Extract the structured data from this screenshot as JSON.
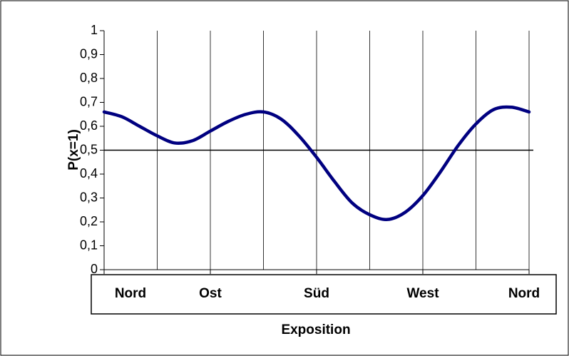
{
  "chart_data": {
    "type": "line",
    "x_label": "Exposition",
    "y_label": "P(x=1)",
    "x": [
      0,
      15,
      30,
      45,
      60,
      75,
      90,
      105,
      120,
      135,
      150,
      165,
      180,
      195,
      210,
      225,
      240,
      255,
      270,
      285,
      300,
      315,
      330,
      345,
      360
    ],
    "series": [
      {
        "color": "#000080",
        "values": [
          0.66,
          0.64,
          0.6,
          0.56,
          0.53,
          0.54,
          0.58,
          0.62,
          0.65,
          0.66,
          0.63,
          0.56,
          0.47,
          0.37,
          0.28,
          0.23,
          0.21,
          0.24,
          0.31,
          0.41,
          0.52,
          0.61,
          0.67,
          0.68,
          0.66
        ]
      }
    ],
    "xlim": [
      0,
      360
    ],
    "xticks": [
      {
        "value": 0,
        "label": "Nord"
      },
      {
        "value": 90,
        "label": "Ost"
      },
      {
        "value": 180,
        "label": "Süd"
      },
      {
        "value": 270,
        "label": "West"
      },
      {
        "value": 360,
        "label": "Nord"
      }
    ],
    "xgrid": [
      0,
      45,
      90,
      135,
      180,
      225,
      270,
      315,
      360
    ],
    "ylim": [
      0,
      1
    ],
    "yticks": [
      0,
      {
        "value": 0.1,
        "label": "0,1"
      },
      {
        "value": 0.2,
        "label": "0,2"
      },
      {
        "value": 0.3,
        "label": "0,3"
      },
      {
        "value": 0.4,
        "label": "0,4"
      },
      {
        "value": 0.5,
        "label": "0,5"
      },
      {
        "value": 0.6,
        "label": "0,6"
      },
      {
        "value": 0.7,
        "label": "0,7"
      },
      {
        "value": 0.8,
        "label": "0,8"
      },
      {
        "value": 0.9,
        "label": "0,9"
      },
      1
    ],
    "hline": 0.5
  }
}
